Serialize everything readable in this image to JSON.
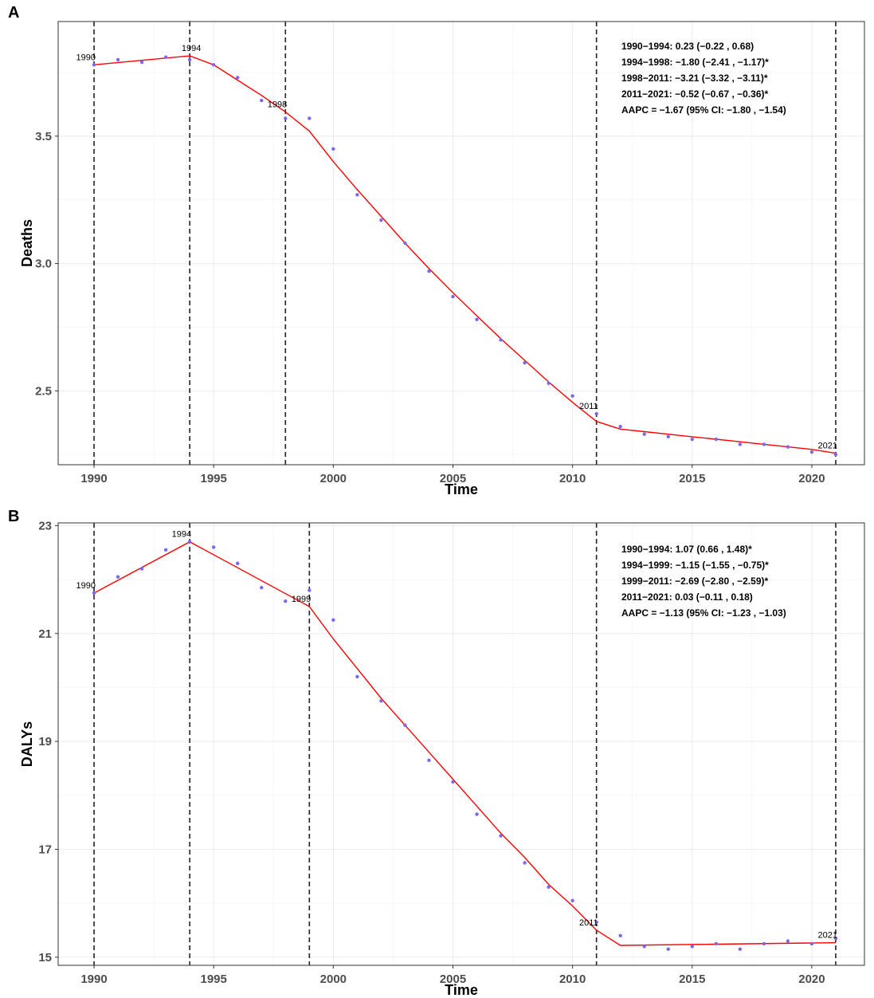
{
  "chart_data": [
    {
      "type": "line",
      "panel_label": "A",
      "xlabel": "Time",
      "ylabel": "Deaths",
      "xlim": [
        1988.5,
        2022.2
      ],
      "ylim": [
        2.21,
        3.95
      ],
      "xticks": [
        1990,
        1995,
        2000,
        2005,
        2010,
        2015,
        2020
      ],
      "xtick_labels": [
        "1990",
        "1995",
        "2000",
        "2005",
        "2010",
        "2015",
        "2020"
      ],
      "yticks": [
        2.5,
        3.0,
        3.5
      ],
      "ytick_labels": [
        "2.5",
        "3.0",
        "3.5"
      ],
      "grid": true,
      "series": [
        {
          "kind": "observed",
          "color": "#7b68ee",
          "x": [
            1990,
            1991,
            1992,
            1993,
            1994,
            1995,
            1996,
            1997,
            1998,
            1999,
            2000,
            2001,
            2002,
            2003,
            2004,
            2005,
            2006,
            2007,
            2008,
            2009,
            2010,
            2011,
            2012,
            2013,
            2014,
            2015,
            2016,
            2017,
            2018,
            2019,
            2020,
            2021
          ],
          "values": [
            3.78,
            3.8,
            3.79,
            3.81,
            3.8,
            3.78,
            3.73,
            3.64,
            3.57,
            3.57,
            3.45,
            3.27,
            3.17,
            3.08,
            2.97,
            2.87,
            2.78,
            2.7,
            2.61,
            2.53,
            2.48,
            2.41,
            2.36,
            2.33,
            2.32,
            2.31,
            2.31,
            2.29,
            2.29,
            2.28,
            2.26,
            2.25
          ]
        },
        {
          "kind": "fitted",
          "color": "#ff0000",
          "x": [
            1990,
            1994,
            1995,
            1996,
            1997,
            1998,
            1999,
            2000,
            2001,
            2002,
            2003,
            2004,
            2005,
            2006,
            2007,
            2008,
            2009,
            2010,
            2011,
            2012,
            2013,
            2014,
            2015,
            2016,
            2017,
            2018,
            2019,
            2020,
            2021
          ],
          "values": [
            3.78,
            3.815,
            3.78,
            3.72,
            3.66,
            3.595,
            3.52,
            3.4,
            3.29,
            3.185,
            3.08,
            2.98,
            2.885,
            2.795,
            2.705,
            2.62,
            2.535,
            2.455,
            2.38,
            2.35,
            2.34,
            2.33,
            2.32,
            2.31,
            2.3,
            2.29,
            2.28,
            2.27,
            2.255
          ]
        }
      ],
      "joinpoints": [
        1990,
        1994,
        1998,
        2011,
        2021
      ],
      "joinpoint_labels": [
        {
          "text": "1990",
          "x": 1990,
          "y": 3.78,
          "anchor": "end"
        },
        {
          "text": "1994",
          "x": 1994,
          "y": 3.815,
          "anchor": "middle"
        },
        {
          "text": "1998",
          "x": 1998,
          "y": 3.595,
          "anchor": "end"
        },
        {
          "text": "2011",
          "x": 2011,
          "y": 2.41,
          "anchor": "end"
        },
        {
          "text": "2021",
          "x": 2021,
          "y": 2.255,
          "anchor": "end"
        }
      ],
      "annotations": [
        "1990−1994: 0.23 (−0.22 , 0.68)",
        "1994−1998: −1.80 (−2.41 , −1.17)*",
        "1998−2011: −3.21 (−3.32 , −3.11)*",
        "2011−2021: −0.52 (−0.67 , −0.36)*",
        "AAPC = −1.67 (95% CI: −1.80 , −1.54)"
      ]
    },
    {
      "type": "line",
      "panel_label": "B",
      "xlabel": "Time",
      "ylabel": "DALYs",
      "xlim": [
        1988.5,
        2022.2
      ],
      "ylim": [
        14.85,
        23.05
      ],
      "xticks": [
        1990,
        1995,
        2000,
        2005,
        2010,
        2015,
        2020
      ],
      "xtick_labels": [
        "1990",
        "1995",
        "2000",
        "2005",
        "2010",
        "2015",
        "2020"
      ],
      "yticks": [
        15,
        17,
        19,
        21,
        23
      ],
      "ytick_labels": [
        "15",
        "17",
        "19",
        "21",
        "23"
      ],
      "grid": true,
      "series": [
        {
          "kind": "observed",
          "color": "#7b68ee",
          "x": [
            1990,
            1991,
            1992,
            1993,
            1994,
            1995,
            1996,
            1997,
            1998,
            1999,
            2000,
            2001,
            2002,
            2003,
            2004,
            2005,
            2006,
            2007,
            2008,
            2009,
            2010,
            2011,
            2012,
            2013,
            2014,
            2015,
            2016,
            2017,
            2018,
            2019,
            2020,
            2021
          ],
          "values": [
            21.75,
            22.05,
            22.2,
            22.55,
            22.7,
            22.6,
            22.3,
            21.85,
            21.6,
            21.8,
            21.25,
            20.2,
            19.75,
            19.3,
            18.65,
            18.25,
            17.65,
            17.25,
            16.75,
            16.3,
            16.05,
            15.65,
            15.4,
            15.2,
            15.15,
            15.2,
            15.25,
            15.15,
            15.25,
            15.3,
            15.25,
            15.35
          ]
        },
        {
          "kind": "fitted",
          "color": "#ff0000",
          "x": [
            1990,
            1994,
            1999,
            2000,
            2001,
            2002,
            2003,
            2004,
            2005,
            2006,
            2007,
            2008,
            2009,
            2010,
            2011,
            2012,
            2021
          ],
          "values": [
            21.75,
            22.7,
            21.5,
            20.9,
            20.35,
            19.8,
            19.3,
            18.8,
            18.3,
            17.8,
            17.3,
            16.85,
            16.35,
            15.95,
            15.5,
            15.22,
            15.27
          ]
        }
      ],
      "joinpoints": [
        1990,
        1994,
        1999,
        2011,
        2021
      ],
      "joinpoint_labels": [
        {
          "text": "1990",
          "x": 1990,
          "y": 21.75,
          "anchor": "end"
        },
        {
          "text": "1994",
          "x": 1994,
          "y": 22.7,
          "anchor": "end"
        },
        {
          "text": "1999",
          "x": 1999,
          "y": 21.5,
          "anchor": "end"
        },
        {
          "text": "2011",
          "x": 2011,
          "y": 15.5,
          "anchor": "end"
        },
        {
          "text": "2021",
          "x": 2021,
          "y": 15.27,
          "anchor": "end"
        }
      ],
      "annotations": [
        "1990−1994: 1.07 (0.66 , 1.48)*",
        "1994−1999: −1.15 (−1.55 , −0.75)*",
        "1999−2011: −2.69 (−2.80 , −2.59)*",
        "2011−2021: 0.03 (−0.11 , 0.18)",
        "AAPC = −1.13 (95% CI: −1.23 , −1.03)"
      ]
    }
  ]
}
